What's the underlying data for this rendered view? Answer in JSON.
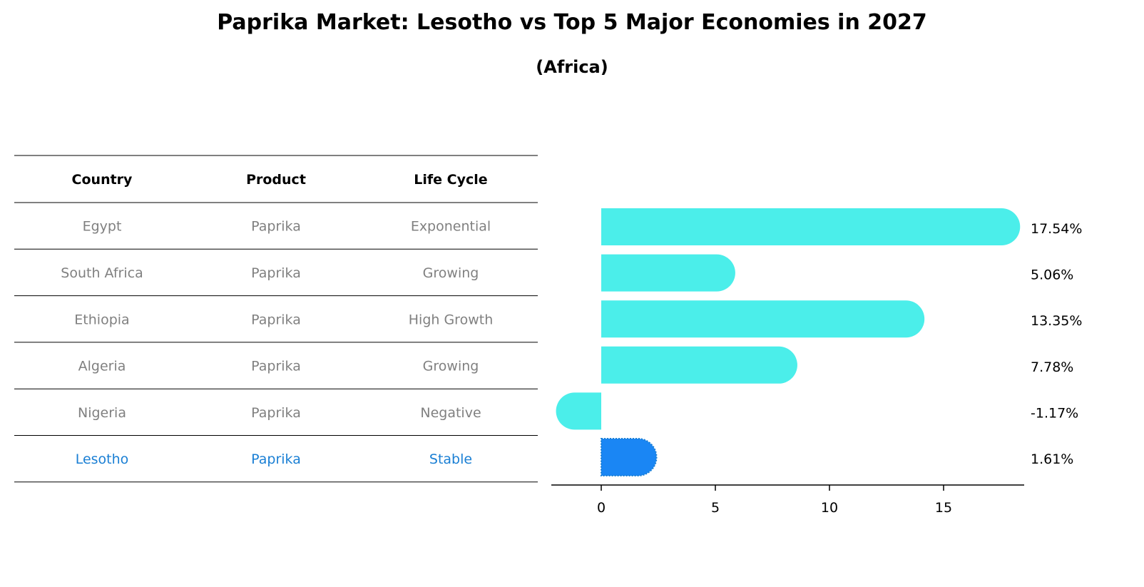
{
  "title": "Paprika Market: Lesotho vs Top 5 Major Economies in 2027",
  "subtitle": "(Africa)",
  "colors": {
    "bar": "#4BEEEA",
    "highlight": "#1A86F4",
    "highlight_text": "#1A7FD4",
    "muted_text": "#808080"
  },
  "table": {
    "headers": [
      "Country",
      "Product",
      "Life Cycle"
    ],
    "rows": [
      {
        "country": "Egypt",
        "product": "Paprika",
        "life_cycle": "Exponential",
        "highlight": false
      },
      {
        "country": "South Africa",
        "product": "Paprika",
        "life_cycle": "Growing",
        "highlight": false
      },
      {
        "country": "Ethiopia",
        "product": "Paprika",
        "life_cycle": "High Growth",
        "highlight": false
      },
      {
        "country": "Algeria",
        "product": "Paprika",
        "life_cycle": "Growing",
        "highlight": false
      },
      {
        "country": "Nigeria",
        "product": "Paprika",
        "life_cycle": "Negative",
        "highlight": false
      },
      {
        "country": "Lesotho",
        "product": "Paprika",
        "life_cycle": "Stable",
        "highlight": true
      }
    ]
  },
  "chart_data": {
    "type": "bar",
    "orientation": "horizontal",
    "categories": [
      "Egypt",
      "South Africa",
      "Ethiopia",
      "Algeria",
      "Nigeria",
      "Lesotho"
    ],
    "values": [
      17.54,
      5.06,
      13.35,
      7.78,
      -1.17,
      1.61
    ],
    "value_labels": [
      "17.54%",
      "5.06%",
      "13.35%",
      "7.78%",
      "-1.17%",
      "1.61%"
    ],
    "highlight_category": "Lesotho",
    "xlim": [
      -2.2,
      18.5
    ],
    "xticks": [
      0,
      5,
      10,
      15
    ],
    "xlabel": "",
    "ylabel": "",
    "grid": false
  }
}
